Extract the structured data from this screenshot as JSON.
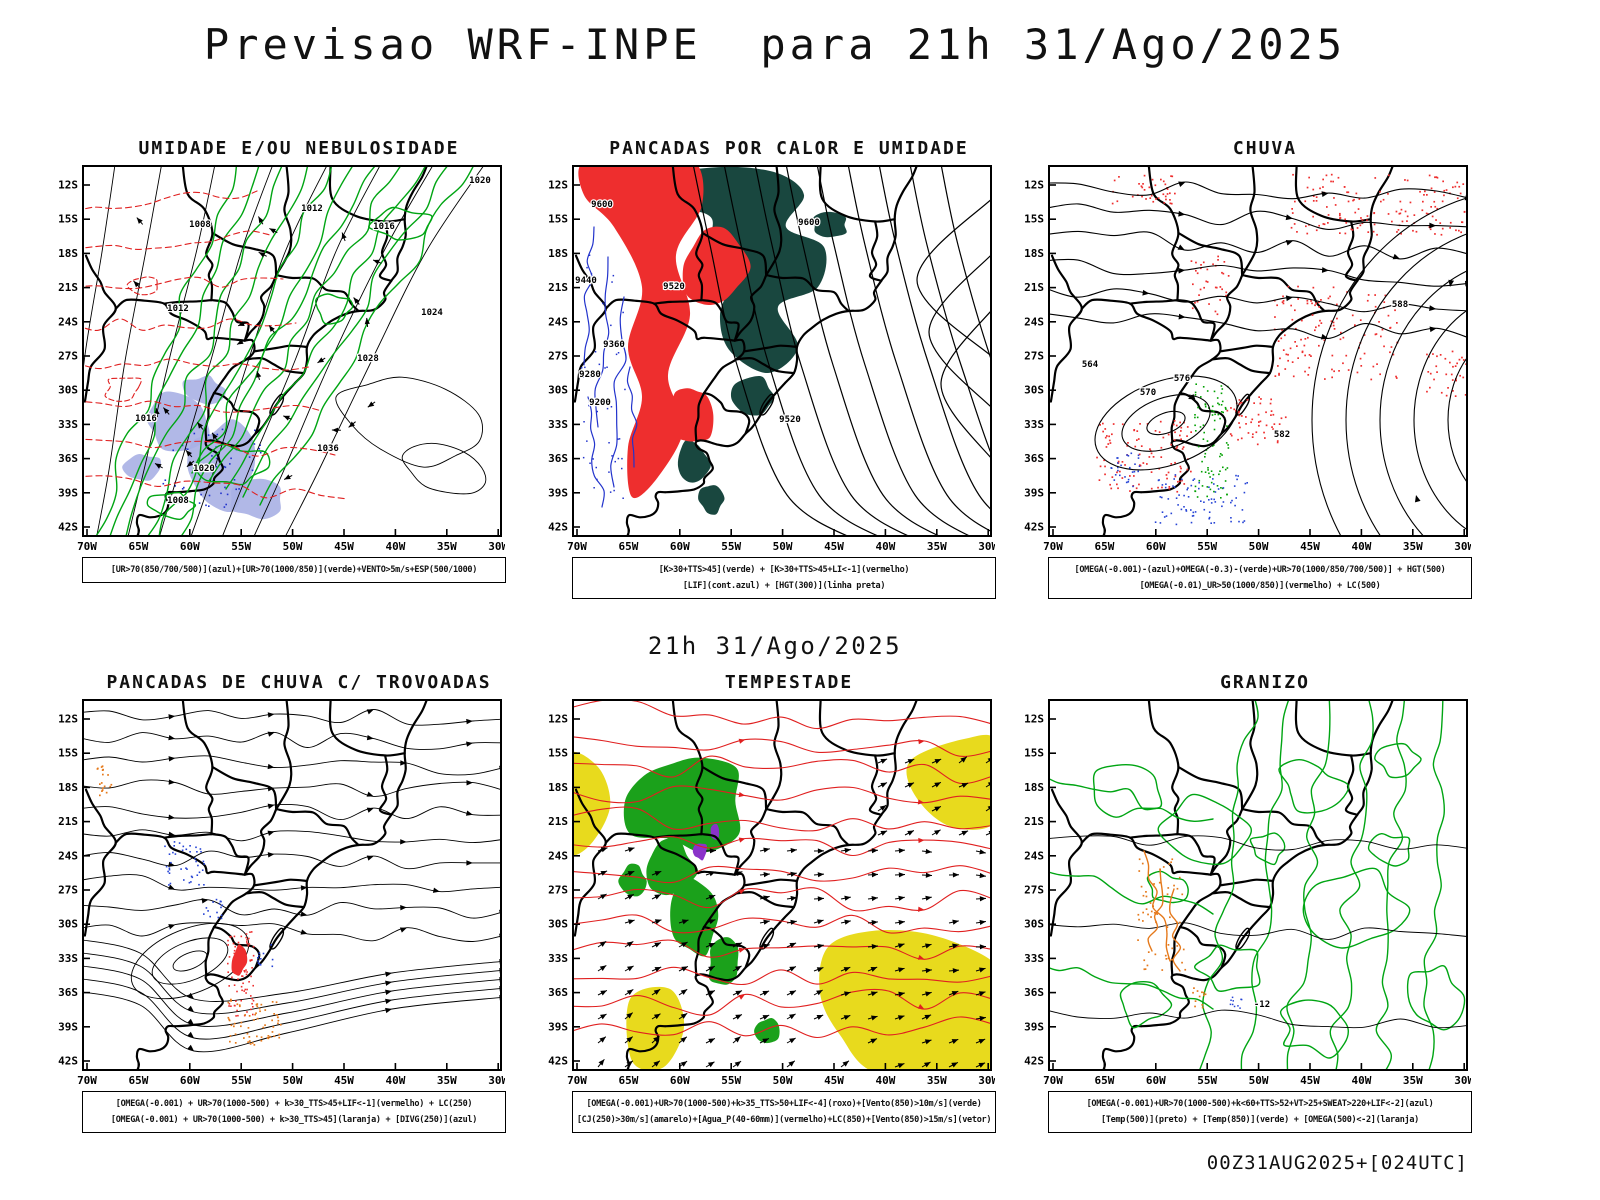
{
  "page": {
    "title": "Previsao WRF-INPE  para 21h 31/Ago/2025",
    "run_label": "21h 31/Ago/2025",
    "footer_stamp": "00Z31AUG2025+[024UTC]"
  },
  "axes": {
    "lat": [
      "12S",
      "15S",
      "18S",
      "21S",
      "24S",
      "27S",
      "30S",
      "33S",
      "36S",
      "39S",
      "42S"
    ],
    "lon": [
      "70W",
      "65W",
      "60W",
      "55W",
      "50W",
      "45W",
      "40W",
      "35W",
      "30W"
    ]
  },
  "colors": {
    "green": "#00a513",
    "red": "#e02020",
    "fill_red": "#ee2e2e",
    "teal": "#19473f",
    "blue": "#2233cc",
    "blue2": "#2543d5",
    "orange": "#e5791b",
    "yellow": "#e8da1d",
    "fill_green": "#1ba11b",
    "purple": "#8a33c9",
    "lavender": "#a9b0e4"
  },
  "panels": [
    {
      "id": "umidade",
      "title": "UMIDADE E/OU NEBULOSIDADE",
      "captions": [
        "[UR>70(850/700/500)](azul)+[UR>70(1000/850)](verde)+VENTO>5m/s+ESP(500/1000)"
      ],
      "contour_labels": [
        "1008",
        "1012",
        "1016",
        "1020",
        "1024",
        "1012",
        "1016",
        "1020",
        "1028",
        "1036",
        "1008"
      ]
    },
    {
      "id": "pancadas_calor",
      "title": "PANCADAS POR CALOR E UMIDADE",
      "captions": [
        "[K>30+TTS>45](verde) + [K>30+TTS>45+LI<-1](vermelho)",
        "[LIF](cont.azul) + [HGT(300)](linha preta)"
      ],
      "contour_labels": [
        "9600",
        "9600",
        "9520",
        "9440",
        "9360",
        "9280",
        "9200",
        "9520"
      ]
    },
    {
      "id": "chuva",
      "title": "CHUVA",
      "captions": [
        "[OMEGA(-0.001)-(azul)+OMEGA(-0.3)-(verde)+UR>70(1000/850/700/500)] + HGT(500)",
        "[OMEGA(-0.01)_UR>50(1000/850)](vermelho) + LC(500)"
      ],
      "contour_labels": [
        "564",
        "570",
        "576",
        "582",
        "588"
      ]
    },
    {
      "id": "trovoadas",
      "title": "PANCADAS DE CHUVA C/ TROVOADAS",
      "captions": [
        "[OMEGA(-0.001) + UR>70(1000-500) + k>30_TTS>45+LIF<-1](vermelho) + LC(250)",
        "[OMEGA(-0.001) + UR>70(1000-500) + k>30_TTS>45](laranja) + [DIVG(250)](azul)"
      ],
      "contour_labels": []
    },
    {
      "id": "tempestade",
      "title": "TEMPESTADE",
      "captions": [
        "[OMEGA(-0.001)+UR>70(1000-500)+k>35_TTS>50+LIF<-4](roxo)+[Vento(850)>10m/s](verde)",
        "[CJ(250)>30m/s](amarelo)+[Agua_P(40-60mm)](vermelho)+LC(850)+[Vento(850)>15m/s](vetor)"
      ],
      "contour_labels": []
    },
    {
      "id": "granizo",
      "title": "GRANIZO",
      "captions": [
        "[OMEGA(-0.001)+UR>70(1000-500)+k<60+TTS>52+VT>25+SWEAT>220+LIF<-2](azul)",
        "[Temp(500)](preto) + [Temp(850)](verde) + [OMEGA(500)<-2](laranja)"
      ],
      "contour_labels": [
        "-12"
      ]
    }
  ]
}
